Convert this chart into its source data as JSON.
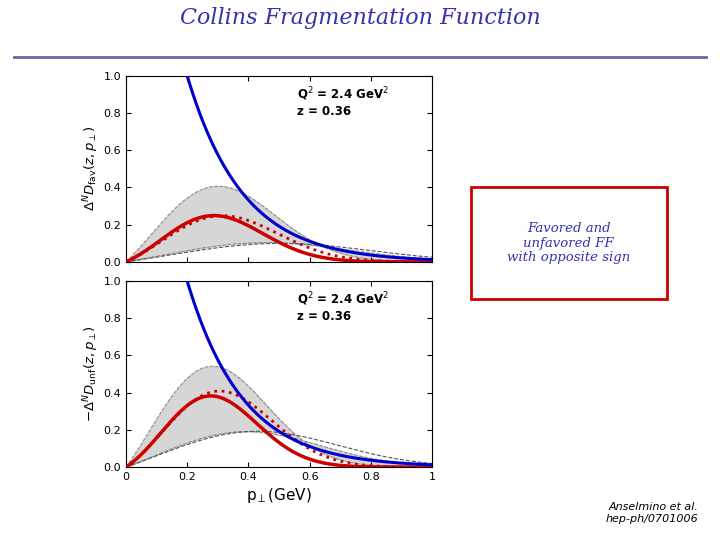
{
  "title": "Collins Fragmentation Function",
  "title_color": "#3333aa",
  "title_fontsize": 16,
  "annotation_q2z_top": "Q$^2$ = 2.4 GeV$^2$\nz = 0.36",
  "annotation_q2z_bot": "Q$^2$ = 2.4 GeV$^2$\nz = 0.36",
  "xlabel": "p$_{\\perp}$(GeV)",
  "ylabel_top": "$\\Delta^N D_{\\mathrm{fav}}(z, p_\\perp)$",
  "ylabel_bot": "$-\\Delta^N D_{\\mathrm{unf}}(z, p_\\perp)$",
  "xlim": [
    0,
    1.0
  ],
  "ylim": [
    0,
    1.0
  ],
  "box_text": "Favored and\nunfavored FF\nwith opposite sign",
  "box_text_color": "#3333aa",
  "box_edge_color": "#cc0000",
  "ref_text": "Anselmino et al.\nhep-ph/0701006",
  "blue_line_color": "#0000cc",
  "red_solid_color": "#cc0000",
  "red_dot_color": "#cc0000",
  "gray_fill_color": "#bbbbbb",
  "dark_line_color": "#555555",
  "background_color": "#ffffff",
  "header_line_color": "#6666aa",
  "fav": {
    "red_solid": {
      "peak": 0.27,
      "sigma": 0.17,
      "amp": 0.265
    },
    "red_dot": {
      "peak": 0.3,
      "sigma": 0.19,
      "amp": 0.26
    },
    "gray_upper": {
      "peak": 0.28,
      "sigma": 0.2,
      "amp": 0.43
    },
    "gray_lower": {
      "peak": 0.45,
      "sigma": 0.28,
      "amp": 0.105
    },
    "dark_dash": {
      "peak": 0.5,
      "sigma": 0.3,
      "amp": 0.1
    }
  },
  "unf": {
    "red_solid": {
      "peak": 0.26,
      "sigma": 0.16,
      "amp": 0.41
    },
    "red_dot": {
      "peak": 0.29,
      "sigma": 0.18,
      "amp": 0.43
    },
    "gray_upper": {
      "peak": 0.26,
      "sigma": 0.19,
      "amp": 0.58
    },
    "gray_lower": {
      "peak": 0.38,
      "sigma": 0.25,
      "amp": 0.195
    },
    "dark_dash": {
      "peak": 0.42,
      "sigma": 0.27,
      "amp": 0.195
    }
  }
}
